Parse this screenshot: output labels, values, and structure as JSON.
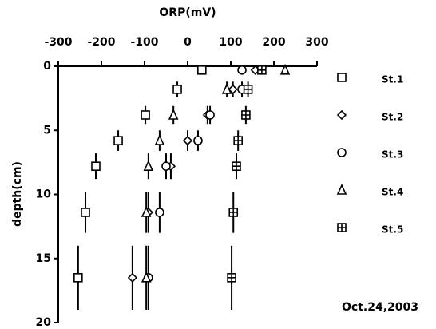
{
  "chart_data": {
    "type": "scatter",
    "x_label": "ORP(mV)",
    "y_label": "depth(cm)",
    "annotation": "Oct.24,2003",
    "xlim": [
      -300,
      300
    ],
    "xticks": [
      -300,
      -200,
      -100,
      0,
      100,
      200,
      300
    ],
    "ylim": [
      0,
      20
    ],
    "yticks": [
      0,
      5,
      10,
      15,
      20
    ],
    "y_inverted": true,
    "x_axis_position": "top",
    "series": [
      {
        "name": "St.1",
        "marker": "square",
        "color": "#000000",
        "x": [
          33,
          -24,
          -98,
          -161,
          -213,
          -237,
          -254
        ],
        "y": [
          0.3,
          1.8,
          3.8,
          5.8,
          7.8,
          11.4,
          16.5
        ],
        "yerr": [
          0.3,
          0.6,
          0.7,
          0.8,
          1.0,
          1.6,
          2.5
        ]
      },
      {
        "name": "St.2",
        "marker": "diamond",
        "color": "#000000",
        "x": [
          157,
          105,
          46,
          0,
          -39,
          -91,
          -128
        ],
        "y": [
          0.3,
          1.8,
          3.8,
          5.8,
          7.8,
          11.4,
          16.5
        ],
        "yerr": [
          0.3,
          0.6,
          0.7,
          0.8,
          1.0,
          1.6,
          2.5
        ]
      },
      {
        "name": "St.3",
        "marker": "circle",
        "color": "#000000",
        "x": [
          126,
          126,
          52,
          24,
          -50,
          -65,
          -91
        ],
        "y": [
          0.3,
          1.8,
          3.8,
          5.8,
          7.8,
          11.4,
          16.5
        ],
        "yerr": [
          0.3,
          0.6,
          0.7,
          0.8,
          1.0,
          1.6,
          2.5
        ]
      },
      {
        "name": "St.4",
        "marker": "triangle",
        "color": "#000000",
        "x": [
          226,
          91,
          -33,
          -65,
          -91,
          -96,
          -96
        ],
        "y": [
          0.3,
          1.8,
          3.8,
          5.8,
          7.8,
          11.4,
          16.5
        ],
        "yerr": [
          0.3,
          0.6,
          0.7,
          0.8,
          1.0,
          1.6,
          2.5
        ]
      },
      {
        "name": "St.5",
        "marker": "grid-square",
        "color": "#000000",
        "x": [
          172,
          140,
          135,
          117,
          113,
          106,
          102
        ],
        "y": [
          0.3,
          1.8,
          3.8,
          5.8,
          7.8,
          11.4,
          16.5
        ],
        "yerr": [
          0.3,
          0.6,
          0.7,
          0.8,
          1.0,
          1.6,
          2.5
        ]
      }
    ]
  }
}
